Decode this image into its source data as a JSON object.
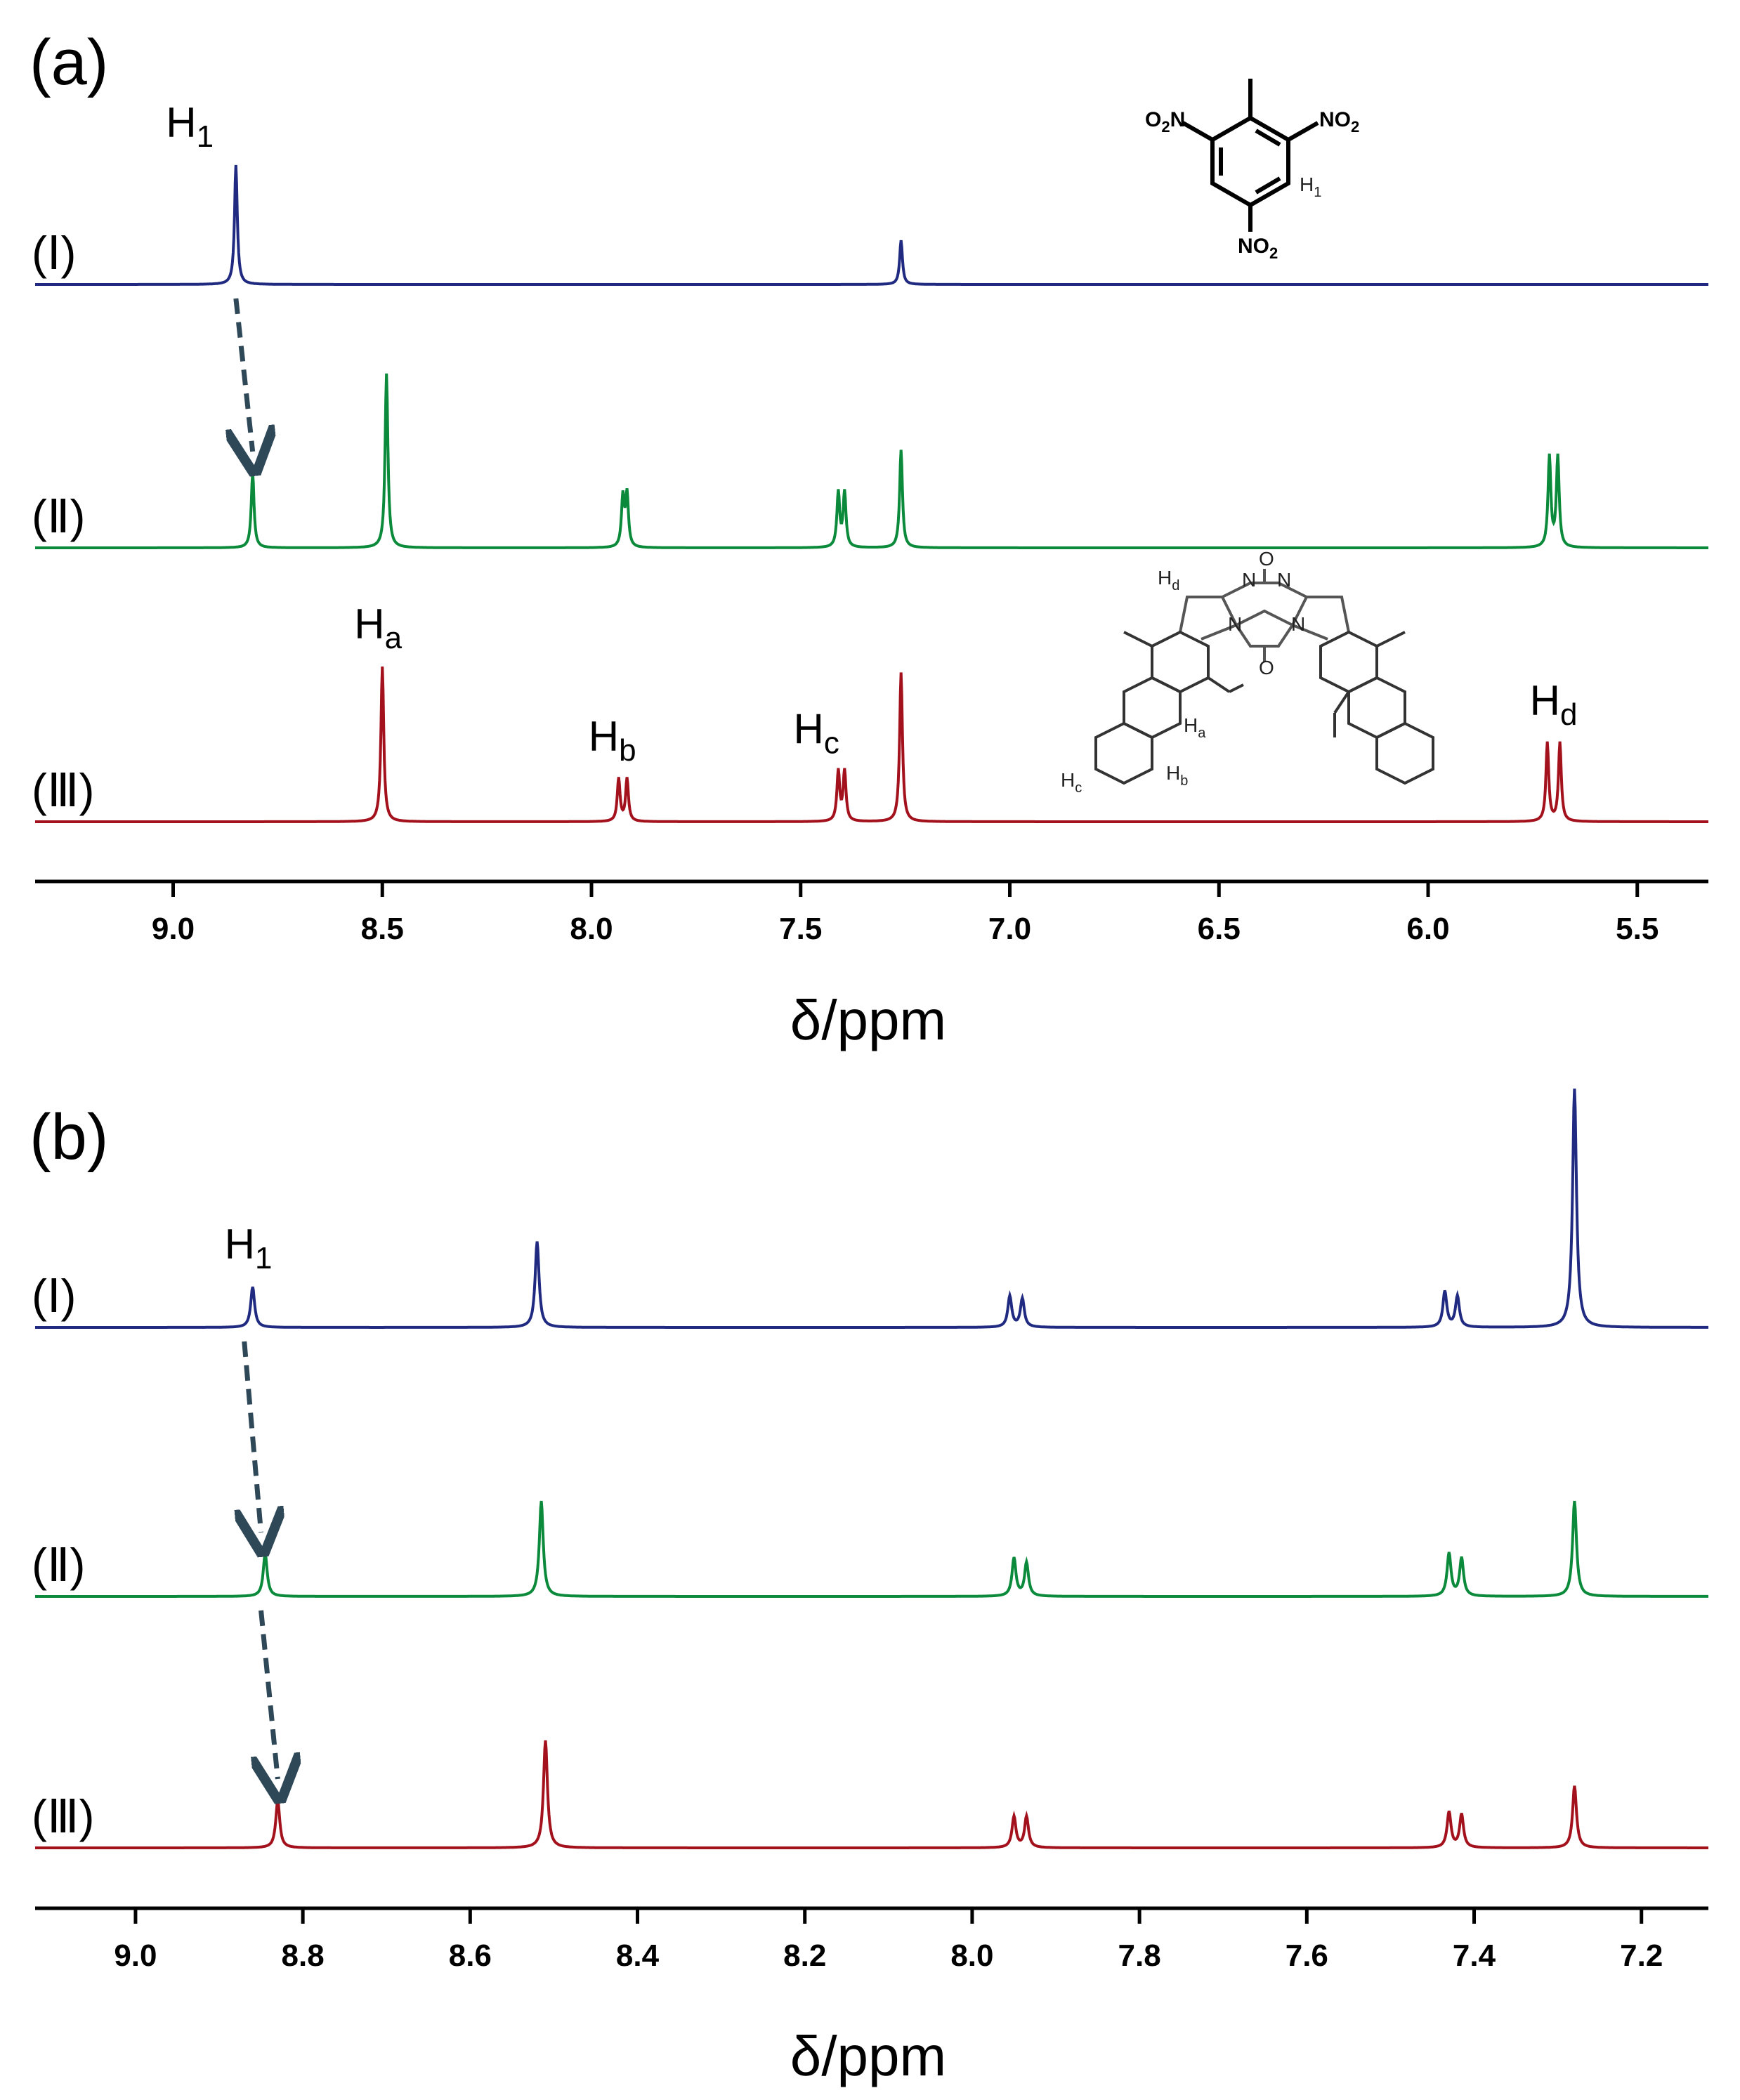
{
  "chart_data": [
    {
      "type": "line",
      "panel_label": "(a)",
      "xlabel": "δ/ppm",
      "xlim": [
        9.33,
        5.33
      ],
      "x_reversed": true,
      "xticks": [
        "9.0",
        "8.5",
        "8.0",
        "7.5",
        "7.0",
        "6.5",
        "6.0",
        "5.5"
      ],
      "xtick_values": [
        9.0,
        8.5,
        8.0,
        7.5,
        7.0,
        6.5,
        6.0,
        5.5
      ],
      "series": [
        {
          "label": "(Ⅰ)",
          "color": "#1f2a80",
          "peaks": [
            {
              "ppm": 8.85,
              "height": 1.0
            },
            {
              "ppm": 7.26,
              "height": 0.37
            }
          ]
        },
        {
          "label": "(Ⅱ)",
          "color": "#0a8a3a",
          "peaks": [
            {
              "ppm": 8.81,
              "height": 0.63
            },
            {
              "ppm": 8.49,
              "height": 1.46
            },
            {
              "ppm": 7.925,
              "height": 0.42
            },
            {
              "ppm": 7.915,
              "height": 0.44
            },
            {
              "ppm": 7.41,
              "height": 0.46
            },
            {
              "ppm": 7.395,
              "height": 0.46
            },
            {
              "ppm": 7.26,
              "height": 0.82
            },
            {
              "ppm": 5.71,
              "height": 0.76
            },
            {
              "ppm": 5.69,
              "height": 0.76
            }
          ]
        },
        {
          "label": "(Ⅲ)",
          "color": "#a3111c",
          "peaks": [
            {
              "ppm": 8.5,
              "height": 1.3
            },
            {
              "ppm": 7.935,
              "height": 0.36
            },
            {
              "ppm": 7.915,
              "height": 0.36
            },
            {
              "ppm": 7.41,
              "height": 0.42
            },
            {
              "ppm": 7.395,
              "height": 0.42
            },
            {
              "ppm": 7.26,
              "height": 1.25
            },
            {
              "ppm": 5.715,
              "height": 0.66
            },
            {
              "ppm": 5.685,
              "height": 0.66
            }
          ]
        }
      ],
      "annotations": [
        {
          "text": "H",
          "sub": "1",
          "ppm": 8.95,
          "trace": 0
        },
        {
          "text": "H",
          "sub": "a",
          "ppm": 8.5,
          "trace": 2
        },
        {
          "text": "H",
          "sub": "b",
          "ppm": 7.94,
          "trace": 2
        },
        {
          "text": "H",
          "sub": "c",
          "ppm": 7.45,
          "trace": 2
        },
        {
          "text": "H",
          "sub": "d",
          "ppm": 5.69,
          "trace": 2
        }
      ],
      "shift_arrows": [
        {
          "from_ppm": 8.85,
          "to_ppm": 8.81,
          "from_trace": 0,
          "to_trace": 1
        }
      ],
      "structure_tnt": {
        "labels": {
          "left_nitro": "O",
          "left_nitro_sub": "2",
          "left_nitro_tail": "N",
          "right_nitro": "NO",
          "right_nitro_sub": "2",
          "bottom_nitro": "NO",
          "bottom_nitro_sub": "2",
          "proton": "H",
          "proton_sub": "1"
        }
      },
      "structure_host": {
        "labels": {
          "hd": "H",
          "hd_sub": "d",
          "ha": "H",
          "ha_sub": "a",
          "hb": "H",
          "hb_sub": "b",
          "hc": "H",
          "hc_sub": "c",
          "n": "N",
          "o": "O"
        }
      }
    },
    {
      "type": "line",
      "panel_label": "(b)",
      "xlabel": "δ/ppm",
      "xlim": [
        9.12,
        7.12
      ],
      "x_reversed": true,
      "xticks": [
        "9.0",
        "8.8",
        "8.6",
        "8.4",
        "8.2",
        "8.0",
        "7.8",
        "7.6",
        "7.4",
        "7.2"
      ],
      "xtick_values": [
        9.0,
        8.8,
        8.6,
        8.4,
        8.2,
        8.0,
        7.8,
        7.6,
        7.4,
        7.2
      ],
      "series": [
        {
          "label": "(Ⅰ)",
          "color": "#1f2a80",
          "peaks": [
            {
              "ppm": 8.86,
              "height": 0.34
            },
            {
              "ppm": 8.52,
              "height": 0.72
            },
            {
              "ppm": 7.955,
              "height": 0.26
            },
            {
              "ppm": 7.94,
              "height": 0.24
            },
            {
              "ppm": 7.435,
              "height": 0.3
            },
            {
              "ppm": 7.42,
              "height": 0.26
            },
            {
              "ppm": 7.28,
              "height": 2.0
            }
          ]
        },
        {
          "label": "(Ⅱ)",
          "color": "#0a8a3a",
          "peaks": [
            {
              "ppm": 8.845,
              "height": 0.36
            },
            {
              "ppm": 8.515,
              "height": 0.8
            },
            {
              "ppm": 7.95,
              "height": 0.32
            },
            {
              "ppm": 7.935,
              "height": 0.28
            },
            {
              "ppm": 7.43,
              "height": 0.36
            },
            {
              "ppm": 7.415,
              "height": 0.32
            },
            {
              "ppm": 7.28,
              "height": 0.8
            }
          ]
        },
        {
          "label": "(Ⅲ)",
          "color": "#a3111c",
          "peaks": [
            {
              "ppm": 8.83,
              "height": 0.4
            },
            {
              "ppm": 8.51,
              "height": 0.9
            },
            {
              "ppm": 7.95,
              "height": 0.26
            },
            {
              "ppm": 7.935,
              "height": 0.26
            },
            {
              "ppm": 7.43,
              "height": 0.3
            },
            {
              "ppm": 7.415,
              "height": 0.28
            },
            {
              "ppm": 7.28,
              "height": 0.52
            }
          ]
        }
      ],
      "annotations": [
        {
          "text": "H",
          "sub": "1",
          "ppm": 8.86,
          "trace": 0
        }
      ],
      "shift_arrows": [
        {
          "from_ppm": 8.87,
          "to_ppm": 8.85,
          "from_trace": 0,
          "to_trace": 1
        },
        {
          "from_ppm": 8.85,
          "to_ppm": 8.83,
          "from_trace": 1,
          "to_trace": 2
        }
      ]
    }
  ]
}
